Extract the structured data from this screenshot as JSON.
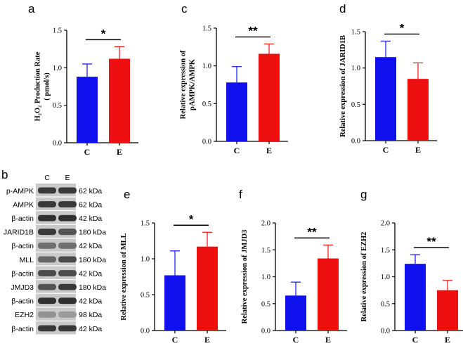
{
  "chart_data": [
    {
      "panel": "a",
      "type": "bar",
      "categories": [
        "C",
        "E"
      ],
      "values": [
        0.88,
        1.12
      ],
      "errors": [
        0.17,
        0.16
      ],
      "colors": [
        "#1010ee",
        "#ee1010"
      ],
      "ylabel_lines": [
        "H₂O₂ Production Rate",
        "( pmol/s)"
      ],
      "ylim": [
        0,
        1.5
      ],
      "yticks": [
        "0.0",
        "0.5",
        "1.0",
        "1.5"
      ],
      "significance": "*"
    },
    {
      "panel": "c",
      "type": "bar",
      "categories": [
        "C",
        "E"
      ],
      "values": [
        0.78,
        1.16
      ],
      "errors": [
        0.21,
        0.13
      ],
      "colors": [
        "#1010ee",
        "#ee1010"
      ],
      "ylabel_lines": [
        "Relative expression of",
        "pAMPK/AMPK"
      ],
      "ylim": [
        0,
        1.5
      ],
      "yticks": [
        "0.0",
        "0.5",
        "1.0",
        "1.5"
      ],
      "significance": "**"
    },
    {
      "panel": "d",
      "type": "bar",
      "categories": [
        "C",
        "E"
      ],
      "values": [
        1.15,
        0.85
      ],
      "errors": [
        0.22,
        0.22
      ],
      "colors": [
        "#1010ee",
        "#ee1010"
      ],
      "ylabel_lines": [
        "Relative expression of JARID1B"
      ],
      "ylim": [
        0,
        1.5
      ],
      "yticks": [
        "0.0",
        "0.5",
        "1.0",
        "1.5"
      ],
      "significance": "*"
    },
    {
      "panel": "e",
      "type": "bar",
      "categories": [
        "C",
        "E"
      ],
      "values": [
        0.77,
        1.17
      ],
      "errors": [
        0.34,
        0.2
      ],
      "colors": [
        "#1010ee",
        "#ee1010"
      ],
      "ylabel_lines": [
        "Relative expression of MLL"
      ],
      "ylim": [
        0,
        1.5
      ],
      "yticks": [
        "0.0",
        "0.5",
        "1.0",
        "1.5"
      ],
      "significance": "*"
    },
    {
      "panel": "f",
      "type": "bar",
      "categories": [
        "C",
        "E"
      ],
      "values": [
        0.65,
        1.34
      ],
      "errors": [
        0.25,
        0.25
      ],
      "colors": [
        "#1010ee",
        "#ee1010"
      ],
      "ylabel_lines": [
        "Relative expression of JMJD3"
      ],
      "ylim": [
        0,
        2.0
      ],
      "yticks": [
        "0.0",
        "0.5",
        "1.0",
        "1.5",
        "2.0"
      ],
      "significance": "**"
    },
    {
      "panel": "g",
      "type": "bar",
      "categories": [
        "C",
        "E"
      ],
      "values": [
        1.24,
        0.75
      ],
      "errors": [
        0.17,
        0.18
      ],
      "colors": [
        "#1010ee",
        "#ee1010"
      ],
      "ylabel_lines": [
        "Relative expression of EZH2"
      ],
      "ylim": [
        0,
        2.0
      ],
      "yticks": [
        "0.0",
        "0.5",
        "1.0",
        "1.5",
        "2.0"
      ],
      "significance": "**"
    }
  ],
  "blot": {
    "panel": "b",
    "lane_labels": [
      "C",
      "E"
    ],
    "rows": [
      {
        "protein": "p-AMPK",
        "size": "62 kDa",
        "intensity": [
          0.85,
          0.85
        ]
      },
      {
        "protein": "AMPK",
        "size": "62 kDa",
        "intensity": [
          0.85,
          0.85
        ]
      },
      {
        "protein": "β-actin",
        "size": "42 kDa",
        "intensity": [
          0.9,
          0.9
        ]
      },
      {
        "protein": "JARID1B",
        "size": "180 kDa",
        "intensity": [
          0.85,
          0.7
        ]
      },
      {
        "protein": "β-actin",
        "size": "42 kDa",
        "intensity": [
          0.55,
          0.55
        ]
      },
      {
        "protein": "MLL",
        "size": "180 kDa",
        "intensity": [
          0.6,
          0.75
        ]
      },
      {
        "protein": "β-actin",
        "size": "42 kDa",
        "intensity": [
          0.75,
          0.75
        ]
      },
      {
        "protein": "JMJD3",
        "size": "180 kDa",
        "intensity": [
          0.7,
          0.85
        ]
      },
      {
        "protein": "β-actin",
        "size": "42 kDa",
        "intensity": [
          0.9,
          0.9
        ]
      },
      {
        "protein": "EZH2",
        "size": "98 kDa",
        "intensity": [
          0.35,
          0.3
        ]
      },
      {
        "protein": "β-actin",
        "size": "42 kDa",
        "intensity": [
          0.85,
          0.85
        ]
      }
    ]
  }
}
